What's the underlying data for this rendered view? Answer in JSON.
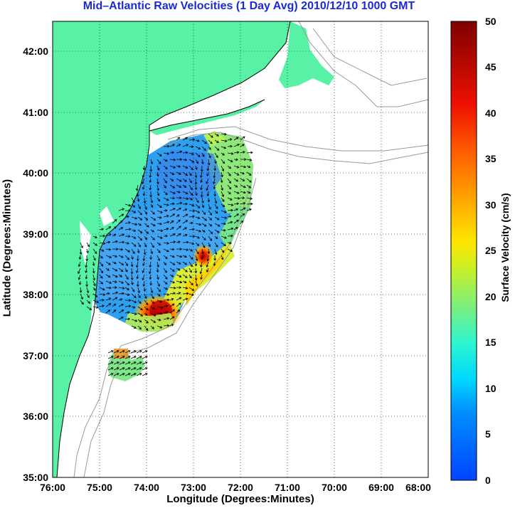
{
  "title": "Mid–Atlantic Raw Velocities (1 Day Avg) 2010/12/10 1000 GMT",
  "axes": {
    "xlabel": "Longitude (Degrees:Minutes)",
    "ylabel": "Latitude (Degrees:Minutes)",
    "xticks": [
      "76:00",
      "75:00",
      "74:00",
      "73:00",
      "72:00",
      "71:00",
      "70:00",
      "69:00",
      "68:00"
    ],
    "yticks": [
      "42:00",
      "41:00",
      "40:00",
      "39:00",
      "38:00",
      "37:00",
      "36:00",
      "35:00"
    ],
    "lon_range": [
      -76,
      -68
    ],
    "lat_range": [
      35,
      42.5
    ],
    "grid": "dotted"
  },
  "colorbar": {
    "label": "Surface Velocity (cm/s)",
    "ticks": [
      "50",
      "45",
      "40",
      "35",
      "30",
      "25",
      "20",
      "15",
      "10",
      "5",
      "0"
    ],
    "min": 0,
    "max": 50
  },
  "colors": {
    "land": "#57f2a6",
    "title": "#1a2bd6",
    "grid": "#000000",
    "contour": "#9a9a9a"
  }
}
